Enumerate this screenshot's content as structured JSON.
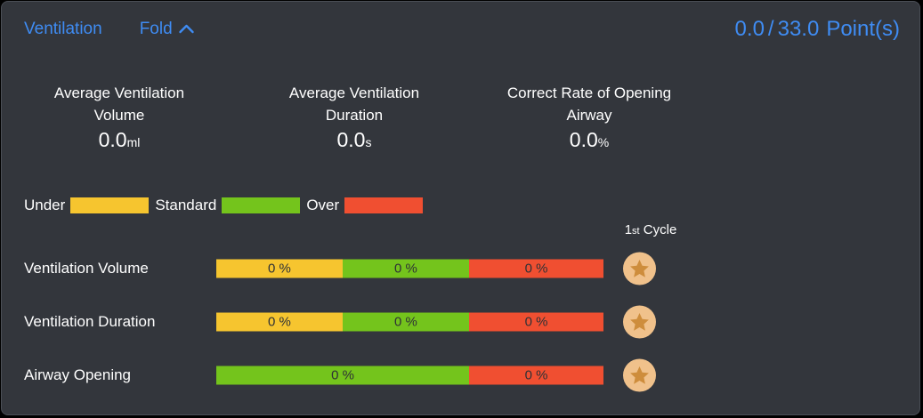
{
  "header": {
    "title": "Ventilation",
    "fold_label": "Fold",
    "score": {
      "current": "0.0",
      "separator": "/",
      "total": "33.0",
      "unit": "Point(s)"
    }
  },
  "stats": [
    {
      "label_line1": "Average Ventilation",
      "label_line2": "Volume",
      "value": "0.0",
      "unit": "ml"
    },
    {
      "label_line1": "Average Ventilation",
      "label_line2": "Duration",
      "value": "0.0",
      "unit": "s"
    },
    {
      "label_line1": "Correct Rate of Opening",
      "label_line2": "Airway",
      "value": "0.0",
      "unit": "%"
    }
  ],
  "legend": {
    "items": [
      {
        "label": "Under",
        "key": "under"
      },
      {
        "label": "Standard",
        "key": "standard"
      },
      {
        "label": "Over",
        "key": "over"
      }
    ]
  },
  "cycle_header": {
    "prefix": "1",
    "suffix": "st",
    "word": " Cycle"
  },
  "rows": [
    {
      "label": "Ventilation Volume",
      "segments": [
        {
          "name": "under",
          "label": "0 %",
          "width_pct": 32.6
        },
        {
          "name": "standard",
          "label": "0 %",
          "width_pct": 32.7
        },
        {
          "name": "over",
          "label": "0 %",
          "width_pct": 34.7
        }
      ]
    },
    {
      "label": "Ventilation Duration",
      "segments": [
        {
          "name": "under",
          "label": "0 %",
          "width_pct": 32.6
        },
        {
          "name": "standard",
          "label": "0 %",
          "width_pct": 32.7
        },
        {
          "name": "over",
          "label": "0 %",
          "width_pct": 34.7
        }
      ]
    },
    {
      "label": "Airway Opening",
      "segments": [
        {
          "name": "standard",
          "label": "0 %",
          "width_pct": 65.3
        },
        {
          "name": "over",
          "label": "0 %",
          "width_pct": 34.7
        }
      ]
    }
  ],
  "colors": {
    "accent_blue": "#3f8cf3",
    "under": "#f6c52f",
    "standard": "#74c41c",
    "over": "#f04f31",
    "panel_bg": "#33363c",
    "bar_text": "#2e3136",
    "star_circle": "#f0c18b",
    "star_glyph": "#ce8d3c"
  }
}
